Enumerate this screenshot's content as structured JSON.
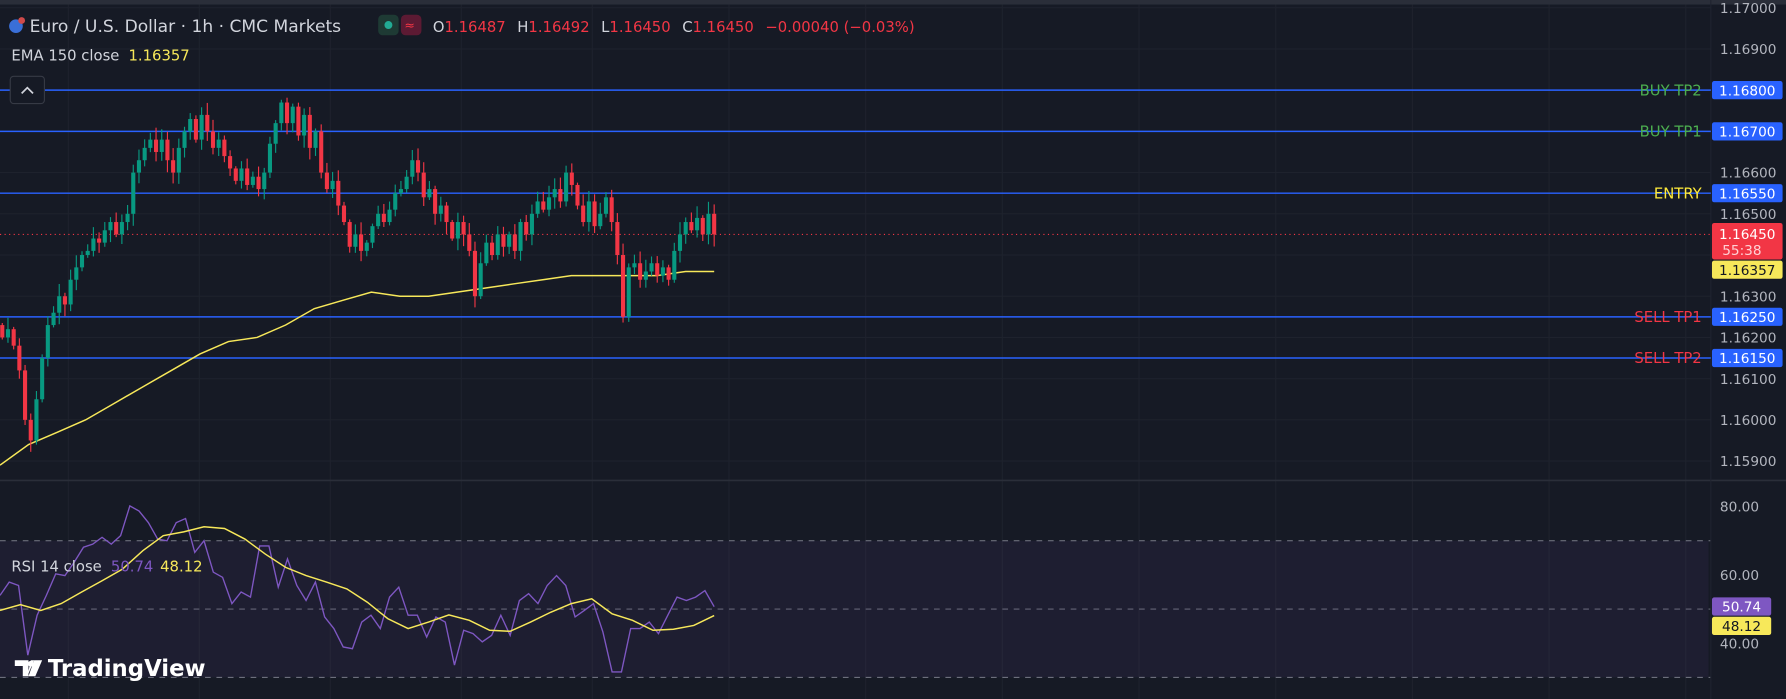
{
  "header": {
    "title": "Euro / U.S. Dollar · 1h · CMC Markets",
    "ohlc": {
      "o_label": "O",
      "o": "1.16487",
      "h_label": "H",
      "h": "1.16492",
      "l_label": "L",
      "l": "1.16450",
      "c_label": "C",
      "c": "1.16450",
      "change": "−0.00040 (−0.03%)"
    },
    "market_status_icon": "green-dot-icon",
    "replay_icon": "wave-icon",
    "symbol_icon": "eu-us-flag-icon"
  },
  "ema": {
    "label": "EMA 150 close",
    "value": "1.16357"
  },
  "collapse_icon": "chevron-up-icon",
  "levels": [
    {
      "name": "BUY TP2",
      "price": 1.168,
      "price_label": "1.16800",
      "color": "#4caf50"
    },
    {
      "name": "BUY TP1",
      "price": 1.167,
      "price_label": "1.16700",
      "color": "#4caf50"
    },
    {
      "name": "ENTRY",
      "price": 1.1655,
      "price_label": "1.16550",
      "color": "#ffeb3b"
    },
    {
      "name": "SELL TP1",
      "price": 1.1625,
      "price_label": "1.16250",
      "color": "#f23645"
    },
    {
      "name": "SELL TP2",
      "price": 1.1615,
      "price_label": "1.16150",
      "color": "#f23645"
    }
  ],
  "price_axis": [
    "1.17000",
    "1.16900",
    "1.16600",
    "1.16500",
    "1.16300",
    "1.16200",
    "1.16100",
    "1.16000",
    "1.15900"
  ],
  "current_price": {
    "value": "1.16450",
    "countdown": "55:38",
    "price": 1.1645
  },
  "ema_tag": "1.16357",
  "rsi": {
    "label": "RSI 14 close",
    "value": "50.74",
    "ma_value": "48.12",
    "axis": [
      "80.00",
      "60.00",
      "40.00"
    ],
    "bands": [
      70,
      50,
      30
    ]
  },
  "logo": "TradingView",
  "colors": {
    "bg": "#161a25",
    "up": "#089981",
    "down": "#f23645",
    "level_line": "#2962ff",
    "ema": "#f7e85a",
    "rsi": "#7e57c2",
    "rsi_ma": "#f7e85a"
  },
  "chart_data": {
    "type": "candlestick",
    "ylim": [
      1.1587,
      1.1701
    ],
    "closes": [
      1.162,
      1.1622,
      1.1618,
      1.1612,
      1.16,
      1.1595,
      1.1605,
      1.1615,
      1.1623,
      1.1626,
      1.163,
      1.1628,
      1.1634,
      1.1637,
      1.164,
      1.1641,
      1.1644,
      1.1643,
      1.1646,
      1.1648,
      1.1645,
      1.1648,
      1.165,
      1.166,
      1.1663,
      1.1666,
      1.1668,
      1.1665,
      1.1668,
      1.1663,
      1.166,
      1.1666,
      1.167,
      1.1673,
      1.1668,
      1.1674,
      1.167,
      1.1666,
      1.1668,
      1.1664,
      1.1661,
      1.1658,
      1.1661,
      1.1657,
      1.1659,
      1.1656,
      1.166,
      1.1667,
      1.1672,
      1.1677,
      1.1672,
      1.1676,
      1.1669,
      1.1674,
      1.1666,
      1.167,
      1.166,
      1.1656,
      1.1658,
      1.1652,
      1.1648,
      1.1642,
      1.1645,
      1.1641,
      1.1643,
      1.1647,
      1.165,
      1.1648,
      1.1651,
      1.1655,
      1.1656,
      1.1659,
      1.1663,
      1.166,
      1.1654,
      1.1656,
      1.165,
      1.1652,
      1.1648,
      1.1644,
      1.1648,
      1.1645,
      1.1641,
      1.163,
      1.1638,
      1.1643,
      1.164,
      1.1645,
      1.1642,
      1.1645,
      1.1641,
      1.1648,
      1.1645,
      1.165,
      1.1653,
      1.1651,
      1.1654,
      1.1656,
      1.1653,
      1.166,
      1.1657,
      1.1652,
      1.1648,
      1.1653,
      1.1647,
      1.165,
      1.1654,
      1.1648,
      1.164,
      1.1625,
      1.1637,
      1.1638,
      1.1634,
      1.1636,
      1.1638,
      1.1635,
      1.1637,
      1.1634,
      1.1641,
      1.1645,
      1.1648,
      1.1646,
      1.1649,
      1.1645,
      1.165,
      1.1645
    ],
    "ema150": [
      1.1589,
      1.1594,
      1.1597,
      1.16,
      1.1604,
      1.1608,
      1.1612,
      1.1616,
      1.1619,
      1.162,
      1.1623,
      1.1627,
      1.1629,
      1.1631,
      1.163,
      1.163,
      1.1631,
      1.1632,
      1.1633,
      1.1634,
      1.1635,
      1.1635,
      1.1635,
      1.1635,
      1.1636,
      1.1636
    ],
    "rsi_values": [
      54.0,
      57.9,
      56.9,
      36.5,
      48.2,
      54.0,
      60.3,
      59.8,
      63.7,
      68.1,
      69.0,
      71.0,
      69.0,
      71.5,
      80.2,
      78.7,
      75.3,
      70.5,
      70.0,
      75.3,
      76.5,
      66.6,
      70.0,
      60.8,
      59.3,
      51.6,
      55.0,
      53.5,
      68.5,
      68.5,
      56.4,
      64.7,
      56.9,
      52.5,
      57.9,
      47.7,
      44.3,
      38.9,
      38.4,
      46.2,
      48.2,
      44.3,
      53.5,
      56.4,
      48.2,
      48.2,
      41.8,
      47.7,
      46.2,
      33.6,
      43.8,
      42.8,
      40.4,
      42.3,
      48.2,
      42.3,
      52.5,
      54.5,
      51.6,
      56.9,
      59.8,
      56.9,
      47.7,
      49.6,
      51.6,
      43.3,
      31.6,
      31.6,
      44.3,
      44.3,
      46.2,
      42.8,
      48.2,
      53.5,
      52.5,
      53.5,
      55.4,
      50.7
    ],
    "rsi_ma_values": [
      49.6,
      51.3,
      49.6,
      51.6,
      55.0,
      58.3,
      61.7,
      67.1,
      71.5,
      72.6,
      74.1,
      73.6,
      70.5,
      66.1,
      62.2,
      59.8,
      57.9,
      55.9,
      52.0,
      47.2,
      44.3,
      46.2,
      48.3,
      46.7,
      43.8,
      43.5,
      46.2,
      49.1,
      51.6,
      53.0,
      48.6,
      46.7,
      43.8,
      44.1,
      45.2,
      48.1
    ],
    "rsi_ylim": [
      24,
      87
    ]
  }
}
